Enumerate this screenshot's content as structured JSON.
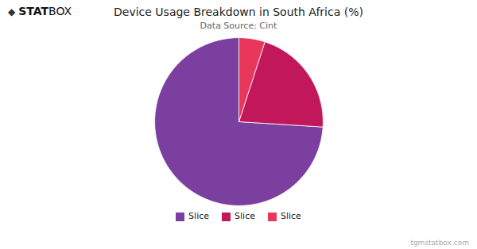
{
  "chart_data": {
    "type": "pie",
    "title": "Device Usage Breakdown in South Africa (%)",
    "subtitle": "Data Source: Cint",
    "categories": [
      "Slice",
      "Slice",
      "Slice"
    ],
    "values": [
      74,
      21,
      5
    ],
    "colors": [
      "#7B3FA0",
      "#C2185B",
      "#E8375A"
    ],
    "legend": "bottom",
    "annotations": [
      "◆",
      "STAT",
      "BOX",
      "tgmstatbox.com"
    ]
  }
}
